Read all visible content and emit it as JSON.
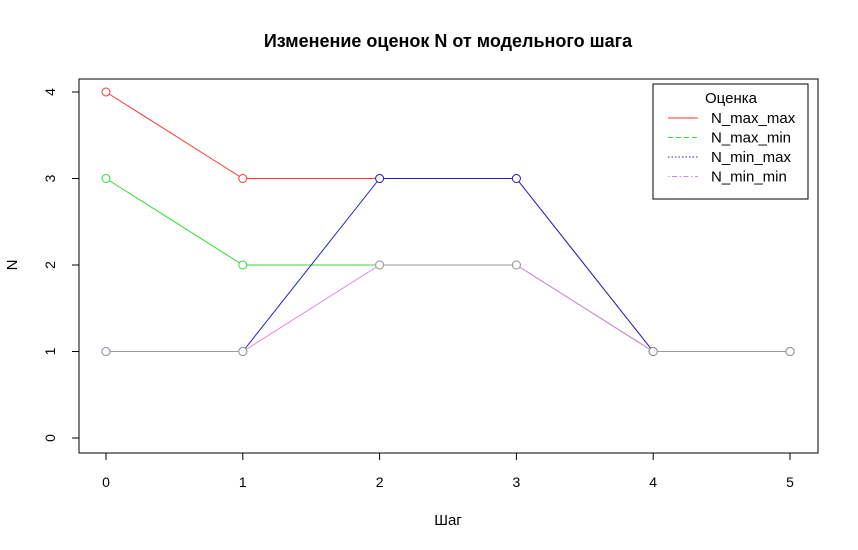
{
  "chart_data": {
    "type": "line",
    "title": "Изменение оценок N от модельного шага",
    "xlabel": "Шаг",
    "ylabel": "N",
    "x": [
      0,
      1,
      2,
      3,
      4,
      5
    ],
    "xlim": [
      0,
      5
    ],
    "ylim": [
      0,
      4
    ],
    "xticks": [
      "0",
      "1",
      "2",
      "3",
      "4",
      "5"
    ],
    "yticks": [
      "0",
      "1",
      "2",
      "3",
      "4"
    ],
    "grid": false,
    "legend": {
      "title": "Оценка",
      "position": "top-right"
    },
    "series": [
      {
        "name": "N_max_max",
        "color": "#ff3333",
        "dash": "solid",
        "values": [
          4,
          3,
          3,
          3,
          1,
          1
        ]
      },
      {
        "name": "N_max_min",
        "color": "#33dd33",
        "dash": "dashed",
        "values": [
          3,
          2,
          2,
          2,
          1,
          1
        ]
      },
      {
        "name": "N_min_max",
        "color": "#2222cc",
        "dash": "dotted",
        "values": [
          1,
          1,
          3,
          3,
          1,
          1
        ]
      },
      {
        "name": "N_min_min",
        "color": "#e080e8",
        "dash": "dotdash",
        "values": [
          1,
          1,
          2,
          2,
          1,
          1
        ]
      }
    ],
    "overlap_color": "#999999"
  }
}
